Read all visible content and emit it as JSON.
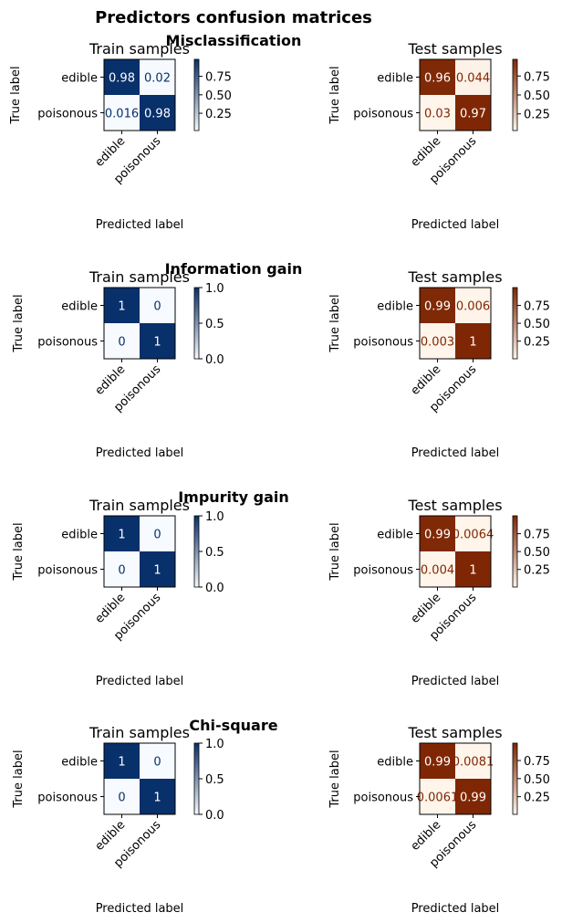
{
  "figure_title": "Predictors confusion matrices",
  "colormaps": {
    "train": {
      "name": "Blues",
      "low": "#f7fbff",
      "high": "#08306b",
      "text_on_high": "#ffffff",
      "text_on_low": "#08306b"
    },
    "test": {
      "name": "Oranges",
      "low": "#fff5eb",
      "high": "#7f2704",
      "text_on_high": "#ffffff",
      "text_on_low": "#7f2704"
    }
  },
  "chart_data": [
    {
      "type": "heatmap",
      "section": "Misclassification",
      "title": "Train samples",
      "colormap": "Blues",
      "xlabel": "Predicted label",
      "ylabel": "True label",
      "x_categories": [
        "edible",
        "poisonous"
      ],
      "y_categories": [
        "edible",
        "poisonous"
      ],
      "values": [
        [
          0.98,
          0.02
        ],
        [
          0.016,
          0.98
        ]
      ],
      "cell_labels": [
        [
          "0.98",
          "0.02"
        ],
        [
          "0.016",
          "0.98"
        ]
      ],
      "colorbar_range": [
        0.016,
        0.98
      ],
      "colorbar_ticks": [
        "0.25",
        "0.50",
        "0.75"
      ],
      "colorbar_tick_values": [
        0.25,
        0.5,
        0.75
      ]
    },
    {
      "type": "heatmap",
      "section": "Misclassification",
      "title": "Test samples",
      "colormap": "Oranges",
      "xlabel": "Predicted label",
      "ylabel": "True label",
      "x_categories": [
        "edible",
        "poisonous"
      ],
      "y_categories": [
        "edible",
        "poisonous"
      ],
      "values": [
        [
          0.96,
          0.044
        ],
        [
          0.03,
          0.97
        ]
      ],
      "cell_labels": [
        [
          "0.96",
          "0.044"
        ],
        [
          "0.03",
          "0.97"
        ]
      ],
      "colorbar_range": [
        0.03,
        0.97
      ],
      "colorbar_ticks": [
        "0.25",
        "0.50",
        "0.75"
      ],
      "colorbar_tick_values": [
        0.25,
        0.5,
        0.75
      ]
    },
    {
      "type": "heatmap",
      "section": "Information gain",
      "title": "Train samples",
      "colormap": "Blues",
      "xlabel": "Predicted label",
      "ylabel": "True label",
      "x_categories": [
        "edible",
        "poisonous"
      ],
      "y_categories": [
        "edible",
        "poisonous"
      ],
      "values": [
        [
          1,
          0
        ],
        [
          0,
          1
        ]
      ],
      "cell_labels": [
        [
          "1",
          "0"
        ],
        [
          "0",
          "1"
        ]
      ],
      "colorbar_range": [
        0,
        1
      ],
      "colorbar_ticks": [
        "0.0",
        "0.5",
        "1.0"
      ],
      "colorbar_tick_values": [
        0,
        0.5,
        1
      ]
    },
    {
      "type": "heatmap",
      "section": "Information gain",
      "title": "Test samples",
      "colormap": "Oranges",
      "xlabel": "Predicted label",
      "ylabel": "True label",
      "x_categories": [
        "edible",
        "poisonous"
      ],
      "y_categories": [
        "edible",
        "poisonous"
      ],
      "values": [
        [
          0.99,
          0.006
        ],
        [
          0.003,
          1
        ]
      ],
      "cell_labels": [
        [
          "0.99",
          "0.006"
        ],
        [
          "0.003",
          "1"
        ]
      ],
      "colorbar_range": [
        0.003,
        1
      ],
      "colorbar_ticks": [
        "0.25",
        "0.50",
        "0.75"
      ],
      "colorbar_tick_values": [
        0.25,
        0.5,
        0.75
      ]
    },
    {
      "type": "heatmap",
      "section": "Impurity gain",
      "title": "Train samples",
      "colormap": "Blues",
      "xlabel": "Predicted label",
      "ylabel": "True label",
      "x_categories": [
        "edible",
        "poisonous"
      ],
      "y_categories": [
        "edible",
        "poisonous"
      ],
      "values": [
        [
          1,
          0
        ],
        [
          0,
          1
        ]
      ],
      "cell_labels": [
        [
          "1",
          "0"
        ],
        [
          "0",
          "1"
        ]
      ],
      "colorbar_range": [
        0,
        1
      ],
      "colorbar_ticks": [
        "0.0",
        "0.5",
        "1.0"
      ],
      "colorbar_tick_values": [
        0,
        0.5,
        1
      ]
    },
    {
      "type": "heatmap",
      "section": "Impurity gain",
      "title": "Test samples",
      "colormap": "Oranges",
      "xlabel": "Predicted label",
      "ylabel": "True label",
      "x_categories": [
        "edible",
        "poisonous"
      ],
      "y_categories": [
        "edible",
        "poisonous"
      ],
      "values": [
        [
          0.99,
          0.0064
        ],
        [
          0.004,
          1
        ]
      ],
      "cell_labels": [
        [
          "0.99",
          "0.0064"
        ],
        [
          "0.004",
          "1"
        ]
      ],
      "colorbar_range": [
        0.004,
        1
      ],
      "colorbar_ticks": [
        "0.25",
        "0.50",
        "0.75"
      ],
      "colorbar_tick_values": [
        0.25,
        0.5,
        0.75
      ]
    },
    {
      "type": "heatmap",
      "section": "Chi-square",
      "title": "Train samples",
      "colormap": "Blues",
      "xlabel": "Predicted label",
      "ylabel": "True label",
      "x_categories": [
        "edible",
        "poisonous"
      ],
      "y_categories": [
        "edible",
        "poisonous"
      ],
      "values": [
        [
          1,
          0
        ],
        [
          0,
          1
        ]
      ],
      "cell_labels": [
        [
          "1",
          "0"
        ],
        [
          "0",
          "1"
        ]
      ],
      "colorbar_range": [
        0,
        1
      ],
      "colorbar_ticks": [
        "0.0",
        "0.5",
        "1.0"
      ],
      "colorbar_tick_values": [
        0,
        0.5,
        1
      ]
    },
    {
      "type": "heatmap",
      "section": "Chi-square",
      "title": "Test samples",
      "colormap": "Oranges",
      "xlabel": "Predicted label",
      "ylabel": "True label",
      "x_categories": [
        "edible",
        "poisonous"
      ],
      "y_categories": [
        "edible",
        "poisonous"
      ],
      "values": [
        [
          0.99,
          0.0081
        ],
        [
          0.0061,
          0.99
        ]
      ],
      "cell_labels": [
        [
          "0.99",
          "0.0081"
        ],
        [
          "0.0061",
          "0.99"
        ]
      ],
      "colorbar_range": [
        0.0061,
        0.99
      ],
      "colorbar_ticks": [
        "0.25",
        "0.50",
        "0.75"
      ],
      "colorbar_tick_values": [
        0.25,
        0.5,
        0.75
      ]
    }
  ]
}
